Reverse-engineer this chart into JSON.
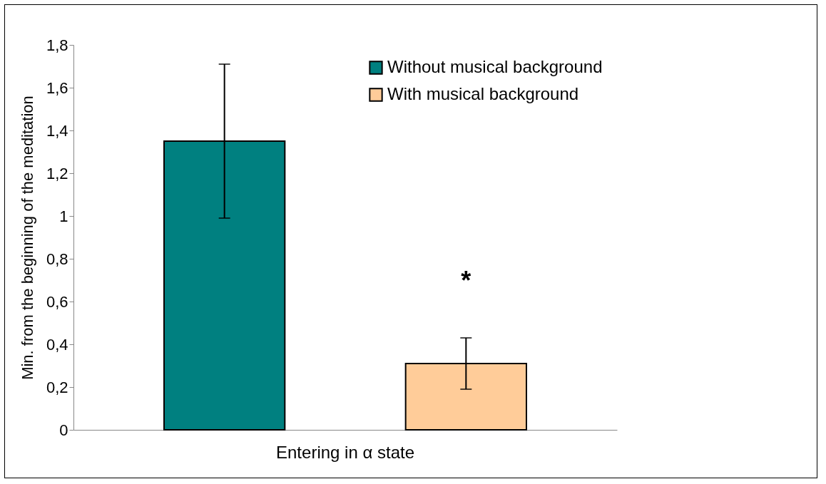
{
  "chart_data": {
    "type": "bar",
    "ylabel": "Min. from the beginning of the meditation",
    "categories": [
      "Entering in α state"
    ],
    "series": [
      {
        "name": "Without musical background",
        "color": "#008080",
        "values": [
          1.35
        ],
        "errors": [
          [
            0.99,
            1.71
          ]
        ]
      },
      {
        "name": "With musical background",
        "color": "#ffcc99",
        "values": [
          0.31
        ],
        "errors": [
          [
            0.19,
            0.43
          ]
        ]
      }
    ],
    "ylim": [
      0,
      1.8
    ],
    "yticks": [
      0,
      {
        "value": 0.2,
        "label": "0,2"
      },
      {
        "value": 0.4,
        "label": "0,4"
      },
      {
        "value": 0.6,
        "label": "0,6"
      },
      {
        "value": 0.8,
        "label": "0,8"
      },
      1,
      {
        "value": 1.2,
        "label": "1,2"
      },
      {
        "value": 1.4,
        "label": "1,4"
      },
      {
        "value": 1.6,
        "label": "1,6"
      },
      {
        "value": 1.8,
        "label": "1,8"
      }
    ],
    "grid": false,
    "legend": "top right",
    "annotations": [
      "*"
    ]
  }
}
